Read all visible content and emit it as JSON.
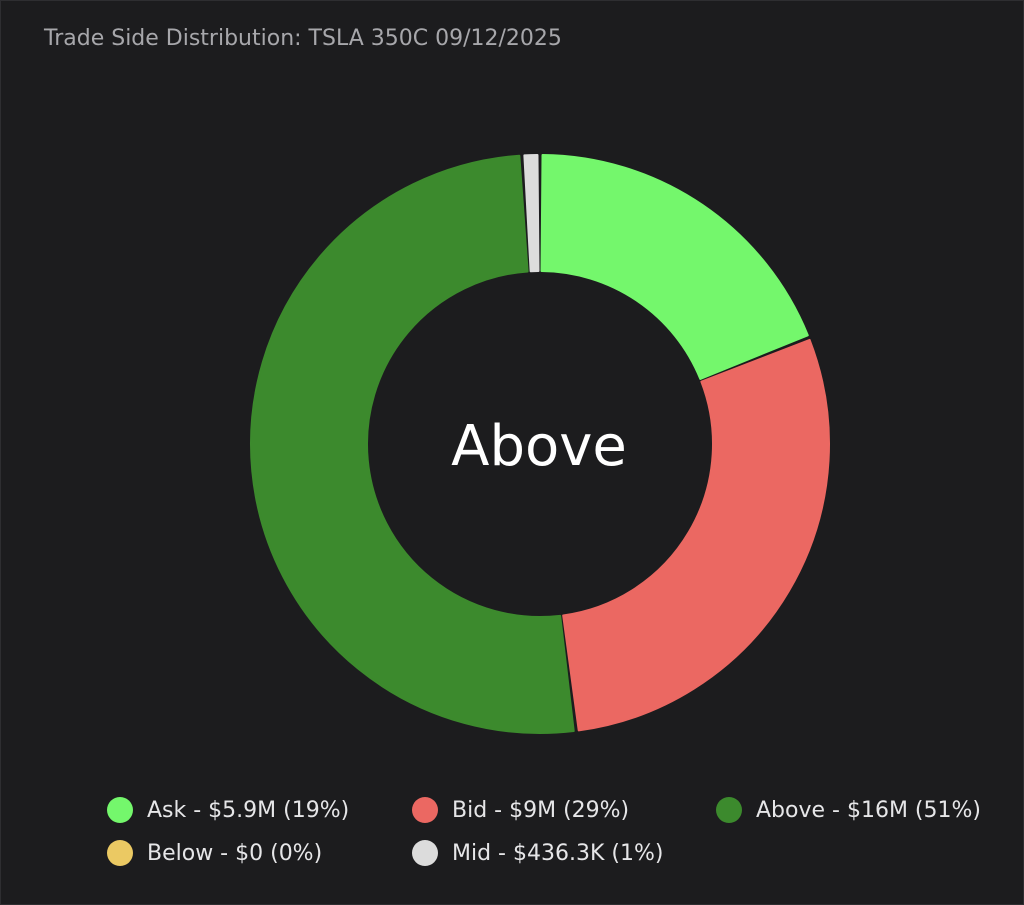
{
  "title": "Trade Side Distribution: TSLA 350C 09/12/2025",
  "chart_data": {
    "type": "pie",
    "donut": true,
    "title": "Trade Side Distribution: TSLA 350C 09/12/2025",
    "center_label": "Above",
    "start_angle_deg": 0,
    "slices": [
      {
        "name": "Ask",
        "value_label": "$5.9M",
        "percent": 19,
        "color": "#74f76c",
        "legend": "Ask - $5.9M (19%)"
      },
      {
        "name": "Bid",
        "value_label": "$9M",
        "percent": 29,
        "color": "#eb6862",
        "legend": "Bid - $9M (29%)"
      },
      {
        "name": "Above",
        "value_label": "$16M",
        "percent": 51,
        "color": "#3c8a2d",
        "legend": "Above - $16M (51%)"
      },
      {
        "name": "Below",
        "value_label": "$0",
        "percent": 0,
        "color": "#ebc963",
        "legend": "Below - $0 (0%)"
      },
      {
        "name": "Mid",
        "value_label": "$436.3K",
        "percent": 1,
        "color": "#dcdcdc",
        "legend": "Mid - $436.3K (1%)"
      }
    ],
    "legend_position": "bottom"
  },
  "colors": {
    "background": "#1c1c1e",
    "title_text": "#a7a7ab",
    "legend_text": "#e6e6e8",
    "center_text": "#ffffff"
  }
}
